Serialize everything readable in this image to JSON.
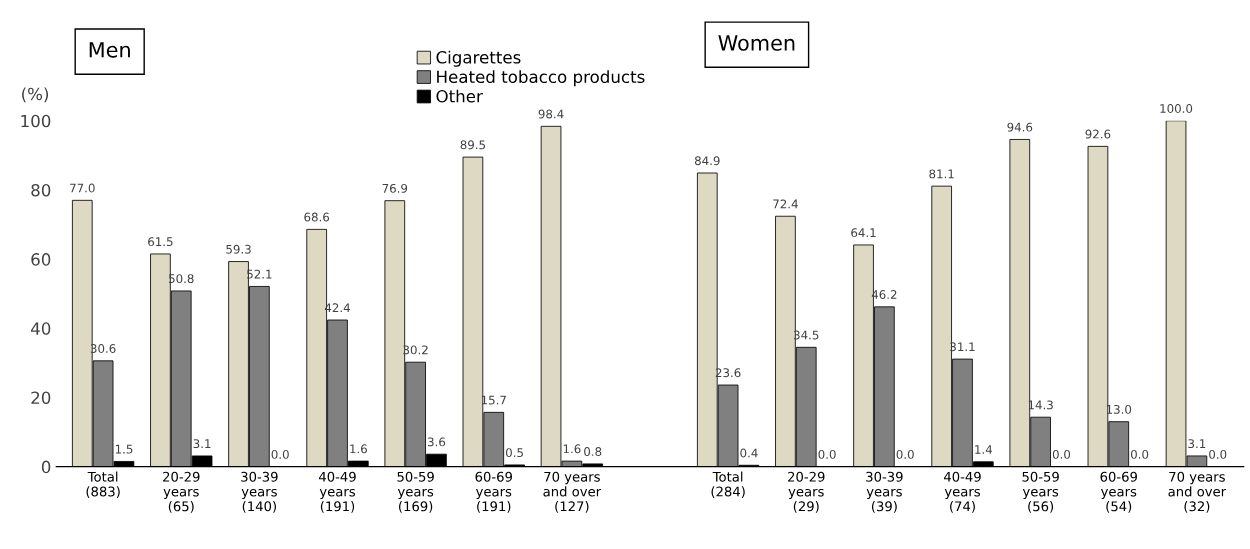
{
  "chart_data": {
    "type": "bar",
    "ylabel": "(%)",
    "categories": [
      "Total\n(883)",
      "20-29\nyears\n(65)",
      "30-39\nyears\n(140)",
      "40-49\nyears\n(191)",
      "50-59\nyears\n(169)",
      "60-69\nyears\n(191)",
      "70 years\nand over\n(127)",
      null,
      "Total\n(284)",
      "20-29\nyears\n(29)",
      "30-39\nyears\n(39)",
      "40-49\nyears\n(74)",
      "50-59\nyears\n(56)",
      "60-69\nyears\n(54)",
      "70 years\nand over\n(32)"
    ],
    "series": [
      {
        "name": "Cigarettes",
        "color": "#ddd9c3",
        "values": [
          77.0,
          61.5,
          59.3,
          68.6,
          76.9,
          89.5,
          98.4,
          null,
          84.9,
          72.4,
          64.1,
          81.1,
          94.6,
          92.6,
          100.0
        ],
        "value_labels": [
          "77.0",
          "61.5",
          "59.3",
          "68.6",
          "76.9",
          "89.5",
          "98.4",
          null,
          "84.9",
          "72.4",
          "64.1",
          "81.1",
          "94.6",
          "92.6",
          "100.0"
        ]
      },
      {
        "name": "Heated tobacco products",
        "color": "#808080",
        "values": [
          30.6,
          50.8,
          52.1,
          42.4,
          30.2,
          15.7,
          1.6,
          null,
          23.6,
          34.5,
          46.2,
          31.1,
          14.3,
          13.0,
          3.1
        ],
        "value_labels": [
          "30.6",
          "50.8",
          "52.1",
          "42.4",
          "30.2",
          "15.7",
          "1.6",
          null,
          "23.6",
          "34.5",
          "46.2",
          "31.1",
          "14.3",
          "13.0",
          "3.1"
        ]
      },
      {
        "name": "Other",
        "color": "#000000",
        "values": [
          1.5,
          3.1,
          0.0,
          1.6,
          3.6,
          0.5,
          0.8,
          null,
          0.4,
          0.0,
          0.0,
          1.4,
          0.0,
          0.0,
          0.0
        ],
        "value_labels": [
          "1.5",
          "3.1",
          "0.0",
          "1.6",
          "3.6",
          "0.5",
          "0.8",
          null,
          "0.4",
          "0.0",
          "0.0",
          "1.4",
          "0.0",
          "0.0",
          "0.0"
        ]
      }
    ],
    "ylim": [
      0,
      100
    ],
    "yticks": [
      0,
      20,
      40,
      60,
      80,
      100
    ],
    "grid": false,
    "legend": "top",
    "annotations": [
      "Men",
      "Women"
    ]
  }
}
